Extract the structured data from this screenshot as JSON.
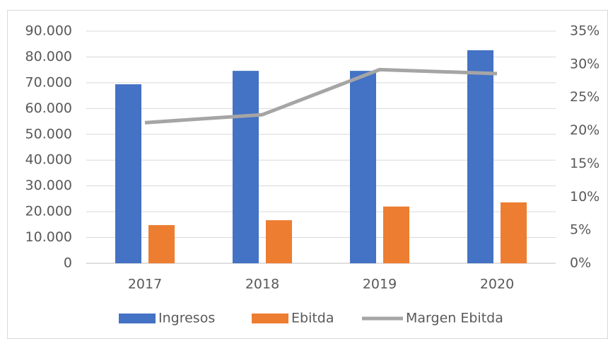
{
  "chart_data": {
    "type": "bar",
    "categories": [
      "2017",
      "2018",
      "2019",
      "2020"
    ],
    "series": [
      {
        "name": "Ingresos",
        "color": "#4472c4",
        "values": [
          69400,
          74600,
          74600,
          82600
        ]
      },
      {
        "name": "Ebitda",
        "color": "#ed7d31",
        "values": [
          14800,
          16700,
          22000,
          23600
        ]
      },
      {
        "name": "Margen Ebitda",
        "color": "#a5a5a5",
        "type": "line",
        "axis": "y2",
        "values": [
          21.2,
          22.4,
          29.2,
          28.6
        ]
      }
    ],
    "ylim": [
      0,
      90000
    ],
    "yticks": [
      0,
      {
        "value": 10000,
        "label": "10.000"
      },
      {
        "value": 20000,
        "label": "20.000"
      },
      {
        "value": 30000,
        "label": "30.000"
      },
      {
        "value": 40000,
        "label": "40.000"
      },
      {
        "value": 50000,
        "label": "50.000"
      },
      {
        "value": 60000,
        "label": "60.000"
      },
      {
        "value": 70000,
        "label": "70.000"
      },
      {
        "value": 80000,
        "label": "80.000"
      },
      {
        "value": 90000,
        "label": "90.000"
      }
    ],
    "y2lim": [
      0,
      35
    ],
    "y2ticks": [
      {
        "value": 0,
        "label": "0%"
      },
      {
        "value": 5,
        "label": "5%"
      },
      {
        "value": 10,
        "label": "10%"
      },
      {
        "value": 15,
        "label": "15%"
      },
      {
        "value": 20,
        "label": "20%"
      },
      {
        "value": 25,
        "label": "25%"
      },
      {
        "value": 30,
        "label": "30%"
      },
      {
        "value": 35,
        "label": "35%"
      }
    ],
    "grid": true,
    "legend": "bottom"
  }
}
